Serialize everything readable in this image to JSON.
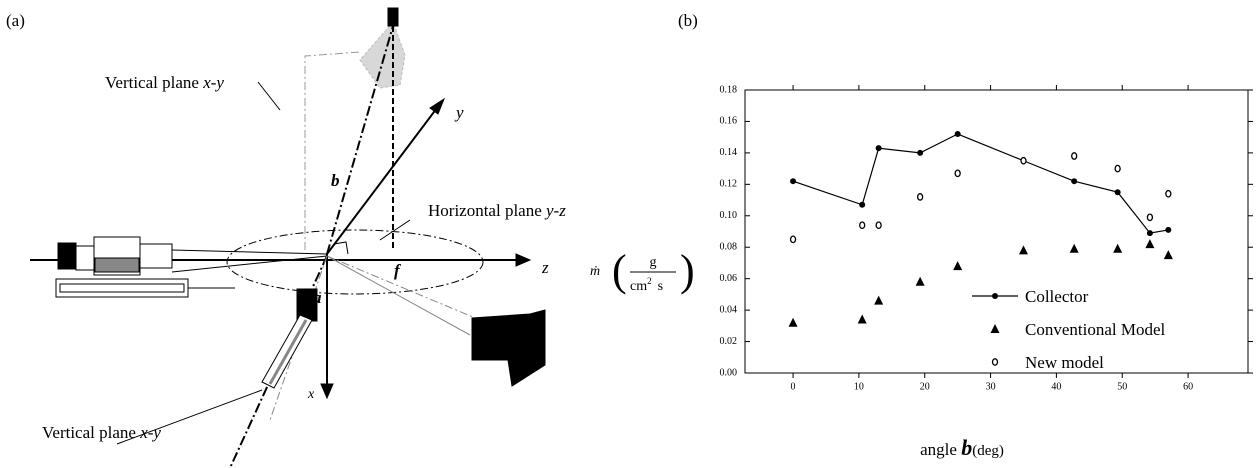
{
  "diagram": {
    "label": "(a)",
    "top_plane": {
      "text": "Vertical plane ",
      "italic": "x-y"
    },
    "axis_y": "y",
    "angle_b": "b",
    "horizontal_plane": {
      "text": "Horizontal plane ",
      "italic": "y-z"
    },
    "axis_z": "z",
    "angle_f": "f",
    "angle_a": "a",
    "axis_x": "x",
    "bottom_plane": {
      "text": "Vertical plane ",
      "italic": "x-y"
    }
  },
  "chart_data": {
    "type": "scatter",
    "panel_label": "(b)",
    "x_label": {
      "text": "angle ",
      "symbol": "b",
      "unit": "(deg)"
    },
    "y_label": {
      "symbol": "ṁ",
      "numerator": "g",
      "denominator": "cm",
      "exponent": "2",
      "unit": "s"
    },
    "x": [
      0,
      10.5,
      13,
      19.3,
      25,
      35,
      42.7,
      49.3,
      54.2,
      57
    ],
    "series": [
      {
        "name": "Collector",
        "color": "#000000",
        "marker": "filled-circle",
        "line": true,
        "values": [
          0.122,
          0.107,
          0.143,
          0.14,
          0.152,
          0.135,
          0.122,
          0.115,
          0.089,
          0.091
        ]
      },
      {
        "name": "Conventional Model",
        "color": "#000000",
        "marker": "triangle",
        "line": false,
        "values": [
          0.032,
          0.034,
          0.046,
          0.058,
          0.068,
          0.078,
          0.079,
          0.079,
          0.082,
          0.075
        ]
      },
      {
        "name": "New model",
        "color": "#000000",
        "marker": "open-circle",
        "line": false,
        "values": [
          0.085,
          0.094,
          0.094,
          0.112,
          0.127,
          0.135,
          0.138,
          0.13,
          0.099,
          0.114
        ]
      }
    ],
    "xlim": [
      -7.3,
      69.1
    ],
    "xticks": [
      0,
      10,
      20,
      30,
      40,
      50,
      60
    ],
    "ylim": [
      0,
      0.18
    ],
    "yticks": [
      {
        "value": 0,
        "label": "0.00"
      },
      {
        "value": 0.02,
        "label": "0.02"
      },
      {
        "value": 0.04,
        "label": "0.04"
      },
      {
        "value": 0.06,
        "label": "0.06"
      },
      {
        "value": 0.08,
        "label": "0.08"
      },
      {
        "value": 0.1,
        "label": "0.10"
      },
      {
        "value": 0.12,
        "label": "0.12"
      },
      {
        "value": 0.14,
        "label": "0.14"
      },
      {
        "value": 0.16,
        "label": "0.16"
      },
      {
        "value": 0.18,
        "label": "0.18"
      }
    ],
    "grid": false
  }
}
